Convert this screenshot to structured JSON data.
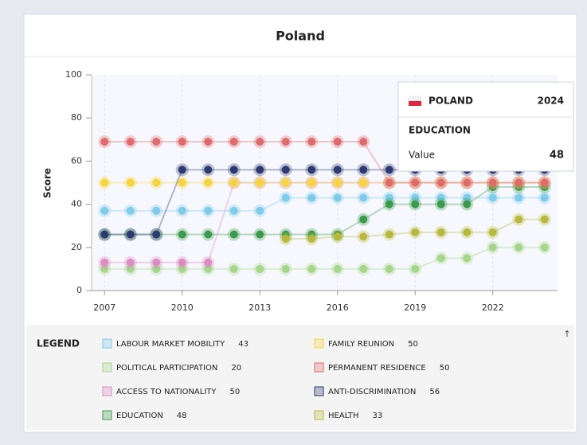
{
  "chart_data": {
    "type": "line",
    "title": "Poland",
    "y_label": "Score",
    "x": [
      2007,
      2008,
      2009,
      2010,
      2011,
      2012,
      2013,
      2014,
      2015,
      2016,
      2017,
      2018,
      2019,
      2020,
      2021,
      2022,
      2023,
      2024
    ],
    "xlim": [
      2006.5,
      2024.5
    ],
    "xticks": [
      2007,
      2010,
      2013,
      2016,
      2019,
      2022
    ],
    "ylim": [
      0,
      100
    ],
    "yticks": [
      0,
      20,
      40,
      60,
      80,
      100
    ],
    "grid": true,
    "legend_title": "LEGEND",
    "series": [
      {
        "name": "LABOUR MARKET MOBILITY",
        "color": "#7ecbea",
        "values": [
          37,
          37,
          37,
          37,
          37,
          37,
          37,
          43,
          43,
          43,
          43,
          43,
          43,
          43,
          43,
          43,
          43,
          43
        ]
      },
      {
        "name": "POLITICAL PARTICIPATION",
        "color": "#a6d68a",
        "values": [
          10,
          10,
          10,
          10,
          10,
          10,
          10,
          10,
          10,
          10,
          10,
          10,
          10,
          15,
          15,
          20,
          20,
          20
        ]
      },
      {
        "name": "ACCESS TO NATIONALITY",
        "color": "#dc8cc4",
        "values": [
          13,
          13,
          13,
          13,
          13,
          50,
          50,
          50,
          50,
          50,
          50,
          50,
          50,
          50,
          50,
          50,
          50,
          50
        ]
      },
      {
        "name": "EDUCATION",
        "color": "#3c9a4c",
        "values": [
          26,
          26,
          26,
          26,
          26,
          26,
          26,
          26,
          26,
          26,
          33,
          40,
          40,
          40,
          40,
          48,
          48,
          48
        ]
      },
      {
        "name": "FAMILY REUNION",
        "color": "#f7d43c",
        "values": [
          50,
          50,
          50,
          50,
          50,
          50,
          50,
          50,
          50,
          50,
          50,
          50,
          50,
          50,
          50,
          50,
          50,
          50
        ]
      },
      {
        "name": "PERMANENT RESIDENCE",
        "color": "#e06b6e",
        "values": [
          69,
          69,
          69,
          69,
          69,
          69,
          69,
          69,
          69,
          69,
          69,
          50,
          50,
          50,
          50,
          50,
          50,
          50
        ]
      },
      {
        "name": "ANTI-DISCRIMINATION",
        "color": "#2e3a72",
        "values": [
          26,
          26,
          26,
          56,
          56,
          56,
          56,
          56,
          56,
          56,
          56,
          56,
          56,
          56,
          56,
          56,
          56,
          56
        ]
      },
      {
        "name": "HEALTH",
        "color": "#b8b93c",
        "values": [
          null,
          null,
          null,
          null,
          null,
          null,
          null,
          24,
          24,
          25,
          25,
          26,
          27,
          27,
          27,
          27,
          33,
          33
        ]
      }
    ],
    "tooltip": {
      "country": "POLAND",
      "label": "Value"
    }
  }
}
